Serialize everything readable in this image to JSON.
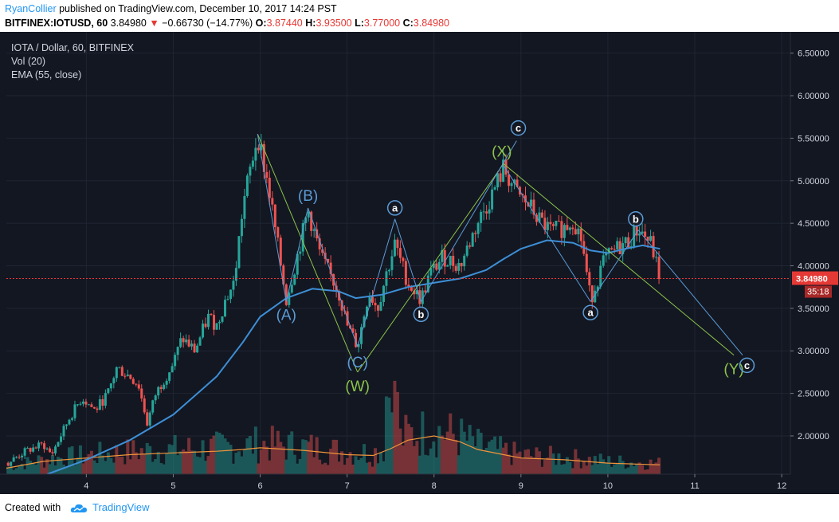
{
  "header": {
    "author": "RyanCollier",
    "published_text": " published on TradingView.com, December 10, 2017 14:24 PST",
    "symbol_line": "BITFINEX:IOTUSD, 60",
    "last": "3.84980",
    "change": "−0.66730 (−14.77%)",
    "o_label": "O:",
    "o": "3.87440",
    "h_label": "H:",
    "h": "3.93500",
    "l_label": "L:",
    "l": "3.77000",
    "c_label": "C:",
    "c": "3.84980"
  },
  "legend": {
    "title": "IOTA / Dollar, 60, BITFINEX",
    "vol": "Vol (20)",
    "ema": "EMA (55, close)"
  },
  "footer": {
    "created_with": "Created with",
    "brand": "TradingView"
  },
  "colors": {
    "background": "#131722",
    "up": "#26a69a",
    "down": "#ef5350",
    "ema": "#3d8fd6",
    "volume_ma": "#f0953a",
    "wave_blue": "#5b9bd5",
    "wave_green": "#8bc34a",
    "price_line": "#e53935"
  },
  "chart_data": {
    "type": "candlestick",
    "y_axis": {
      "ticks": [
        "6.50000",
        "6.00000",
        "5.50000",
        "5.00000",
        "4.50000",
        "4.00000",
        "3.50000",
        "3.00000",
        "2.50000",
        "2.00000"
      ],
      "tick_values": [
        6.5,
        6.0,
        5.5,
        5.0,
        4.5,
        4.0,
        3.5,
        3.0,
        2.5,
        2.0
      ],
      "range": [
        1.55,
        6.75
      ]
    },
    "x_axis": {
      "ticks": [
        "4",
        "5",
        "6",
        "7",
        "8",
        "9",
        "10",
        "11",
        "12"
      ],
      "tick_values": [
        4,
        5,
        6,
        7,
        8,
        9,
        10,
        11,
        12
      ],
      "range": [
        3.08,
        12.1
      ]
    },
    "last_price": {
      "value": 3.8498,
      "label": "3.84980",
      "countdown": "35:18"
    },
    "price_path": [
      [
        3.08,
        1.67
      ],
      [
        3.3,
        1.82
      ],
      [
        3.5,
        1.9
      ],
      [
        3.6,
        1.78
      ],
      [
        3.8,
        2.2
      ],
      [
        3.95,
        2.45
      ],
      [
        4.1,
        2.3
      ],
      [
        4.25,
        2.5
      ],
      [
        4.35,
        2.8
      ],
      [
        4.5,
        2.7
      ],
      [
        4.6,
        2.6
      ],
      [
        4.7,
        2.15
      ],
      [
        4.8,
        2.5
      ],
      [
        5.0,
        2.85
      ],
      [
        5.1,
        3.15
      ],
      [
        5.25,
        3.0
      ],
      [
        5.4,
        3.4
      ],
      [
        5.5,
        3.3
      ],
      [
        5.6,
        3.6
      ],
      [
        5.7,
        3.8
      ],
      [
        5.8,
        4.7
      ],
      [
        5.97,
        5.55
      ],
      [
        6.1,
        4.9
      ],
      [
        6.3,
        3.6
      ],
      [
        6.4,
        4.0
      ],
      [
        6.55,
        4.65
      ],
      [
        6.7,
        4.1
      ],
      [
        6.9,
        3.7
      ],
      [
        7.0,
        3.3
      ],
      [
        7.12,
        3.05
      ],
      [
        7.25,
        3.7
      ],
      [
        7.35,
        3.5
      ],
      [
        7.45,
        3.9
      ],
      [
        7.55,
        4.25
      ],
      [
        7.7,
        3.8
      ],
      [
        7.85,
        3.6
      ],
      [
        7.95,
        3.9
      ],
      [
        8.1,
        4.1
      ],
      [
        8.3,
        4.0
      ],
      [
        8.5,
        4.5
      ],
      [
        8.65,
        4.8
      ],
      [
        8.8,
        5.15
      ],
      [
        8.95,
        4.85
      ],
      [
        9.1,
        4.7
      ],
      [
        9.2,
        4.55
      ],
      [
        9.35,
        4.4
      ],
      [
        9.5,
        4.45
      ],
      [
        9.6,
        4.55
      ],
      [
        9.7,
        4.3
      ],
      [
        9.8,
        3.6
      ],
      [
        9.95,
        4.05
      ],
      [
        10.1,
        4.2
      ],
      [
        10.25,
        4.3
      ],
      [
        10.35,
        4.45
      ],
      [
        10.5,
        4.25
      ],
      [
        10.6,
        3.85
      ]
    ],
    "ema_path": [
      [
        3.55,
        1.55
      ],
      [
        4.0,
        1.72
      ],
      [
        4.5,
        1.95
      ],
      [
        5.0,
        2.25
      ],
      [
        5.5,
        2.7
      ],
      [
        5.8,
        3.1
      ],
      [
        6.0,
        3.4
      ],
      [
        6.3,
        3.62
      ],
      [
        6.6,
        3.73
      ],
      [
        6.9,
        3.7
      ],
      [
        7.1,
        3.62
      ],
      [
        7.4,
        3.66
      ],
      [
        7.7,
        3.75
      ],
      [
        8.0,
        3.8
      ],
      [
        8.3,
        3.85
      ],
      [
        8.6,
        3.95
      ],
      [
        8.8,
        4.08
      ],
      [
        9.0,
        4.2
      ],
      [
        9.3,
        4.3
      ],
      [
        9.6,
        4.27
      ],
      [
        9.8,
        4.18
      ],
      [
        10.0,
        4.15
      ],
      [
        10.2,
        4.2
      ],
      [
        10.4,
        4.24
      ],
      [
        10.6,
        4.2
      ]
    ],
    "volume_ma_path": [
      [
        3.08,
        1.62
      ],
      [
        3.5,
        1.7
      ],
      [
        4.0,
        1.74
      ],
      [
        4.5,
        1.78
      ],
      [
        5.0,
        1.8
      ],
      [
        5.5,
        1.82
      ],
      [
        5.8,
        1.84
      ],
      [
        6.0,
        1.86
      ],
      [
        6.5,
        1.83
      ],
      [
        7.0,
        1.78
      ],
      [
        7.3,
        1.77
      ],
      [
        7.5,
        1.85
      ],
      [
        7.7,
        1.95
      ],
      [
        8.0,
        2.0
      ],
      [
        8.3,
        1.93
      ],
      [
        8.5,
        1.84
      ],
      [
        8.8,
        1.78
      ],
      [
        9.0,
        1.74
      ],
      [
        9.5,
        1.72
      ],
      [
        10.0,
        1.68
      ],
      [
        10.6,
        1.66
      ]
    ],
    "wave_blue_lines": [
      [
        [
          5.97,
          5.55
        ],
        [
          6.3,
          3.58
        ]
      ],
      [
        [
          6.3,
          3.58
        ],
        [
          6.55,
          4.68
        ]
      ],
      [
        [
          6.55,
          4.68
        ],
        [
          7.12,
          3.05
        ]
      ],
      [
        [
          7.12,
          3.05
        ],
        [
          7.55,
          4.55
        ]
      ],
      [
        [
          7.55,
          4.55
        ],
        [
          7.85,
          3.58
        ]
      ],
      [
        [
          7.85,
          3.58
        ],
        [
          8.95,
          5.47
        ]
      ],
      [
        [
          8.8,
          5.18
        ],
        [
          9.8,
          3.58
        ]
      ],
      [
        [
          9.8,
          3.58
        ],
        [
          10.35,
          4.42
        ]
      ],
      [
        [
          10.35,
          4.42
        ],
        [
          11.55,
          2.95
        ]
      ]
    ],
    "wave_green_lines": [
      [
        [
          5.97,
          5.55
        ],
        [
          7.12,
          2.75
        ]
      ],
      [
        [
          7.12,
          2.75
        ],
        [
          8.8,
          5.2
        ]
      ],
      [
        [
          8.8,
          5.2
        ],
        [
          11.45,
          2.95
        ]
      ]
    ],
    "wave_labels": [
      {
        "text": "(A)",
        "x": 6.3,
        "y": 3.42,
        "color": "blue",
        "circle": false
      },
      {
        "text": "(B)",
        "x": 6.55,
        "y": 4.82,
        "color": "blue",
        "circle": false
      },
      {
        "text": "(C)",
        "x": 7.12,
        "y": 2.86,
        "color": "blue",
        "circle": false
      },
      {
        "text": "(W)",
        "x": 7.12,
        "y": 2.58,
        "color": "green",
        "circle": false
      },
      {
        "text": "(X)",
        "x": 8.78,
        "y": 5.34,
        "color": "green",
        "circle": false
      },
      {
        "text": "(Y)",
        "x": 11.45,
        "y": 2.78,
        "color": "green",
        "circle": false
      },
      {
        "text": "a",
        "x": 7.55,
        "y": 4.68,
        "color": "blue",
        "circle": true
      },
      {
        "text": "b",
        "x": 7.85,
        "y": 3.43,
        "color": "blue",
        "circle": true
      },
      {
        "text": "c",
        "x": 8.97,
        "y": 5.62,
        "color": "blue",
        "circle": true
      },
      {
        "text": "a",
        "x": 9.8,
        "y": 3.45,
        "color": "blue",
        "circle": true
      },
      {
        "text": "b",
        "x": 10.32,
        "y": 4.55,
        "color": "blue",
        "circle": true
      },
      {
        "text": "c",
        "x": 11.6,
        "y": 2.83,
        "color": "blue",
        "circle": true
      }
    ]
  }
}
